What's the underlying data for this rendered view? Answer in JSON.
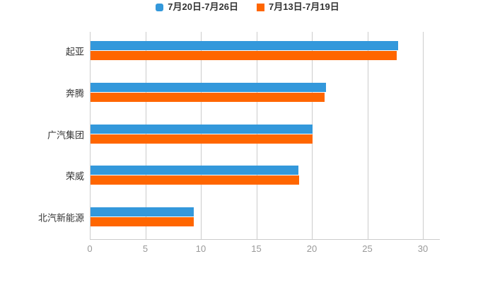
{
  "legend": [
    {
      "label": "7月20日-7月26日",
      "color": "#3398DB",
      "marker": "rounded-square"
    },
    {
      "label": "7月13日-7月19日",
      "color": "#FF6600",
      "marker": "square"
    }
  ],
  "chart_data": {
    "type": "bar",
    "orientation": "horizontal",
    "title": "",
    "xlabel": "",
    "ylabel": "",
    "categories": [
      "起亚",
      "奔腾",
      "广汽集团",
      "荣威",
      "北汽新能源"
    ],
    "series": [
      {
        "name": "7月20日-7月26日",
        "color": "#3398DB",
        "values": [
          27.7,
          21.2,
          20.0,
          18.7,
          9.3
        ]
      },
      {
        "name": "7月13日-7月19日",
        "color": "#FF6600",
        "values": [
          27.6,
          21.1,
          20.0,
          18.8,
          9.3
        ]
      }
    ],
    "xlim": [
      0,
      30
    ],
    "xticks": [
      0,
      5,
      10,
      15,
      20,
      25,
      30
    ],
    "grid": "vertical-gridlines",
    "legend_position": "top-center",
    "background": "#ffffff",
    "gridline_color": "#cccccc",
    "tick_label_color": "#999999",
    "category_label_color": "#333333"
  }
}
